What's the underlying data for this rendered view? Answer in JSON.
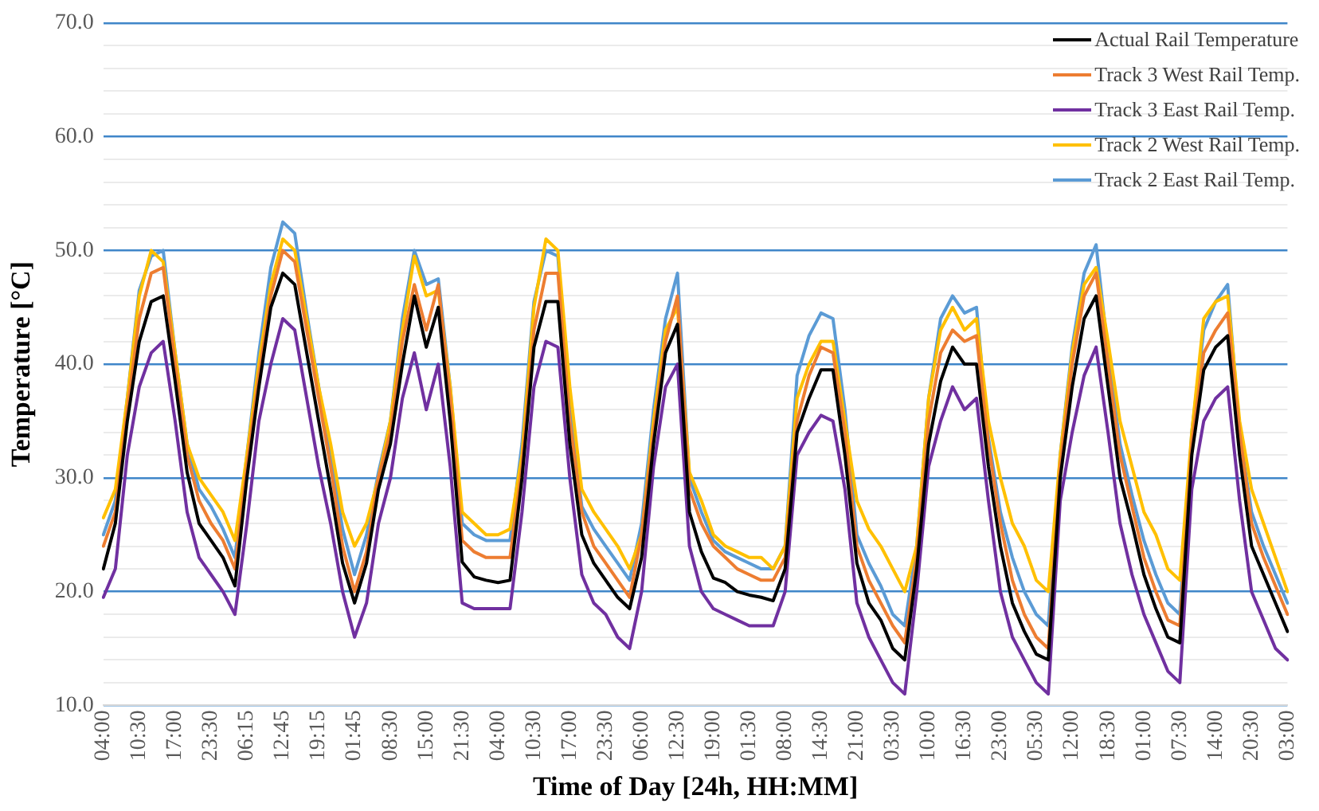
{
  "chart_data": {
    "type": "line",
    "xlabel": "Time of Day [24h, HH:MM]",
    "ylabel": "Temperature [°C]",
    "categories": [
      "04:00",
      null,
      null,
      "10:30",
      null,
      null,
      "17:00",
      null,
      null,
      "23:30",
      null,
      null,
      "06:15",
      null,
      null,
      "12:45",
      null,
      null,
      "19:15",
      null,
      null,
      "01:45",
      null,
      null,
      "08:30",
      null,
      null,
      "15:00",
      null,
      null,
      "21:30",
      null,
      null,
      "04:00",
      null,
      null,
      "10:30",
      null,
      null,
      "17:00",
      null,
      null,
      "23:30",
      null,
      null,
      "06:00",
      null,
      null,
      "12:30",
      null,
      null,
      "19:00",
      null,
      null,
      "01:30",
      null,
      null,
      "08:00",
      null,
      null,
      "14:30",
      null,
      null,
      "21:00",
      null,
      null,
      "03:30",
      null,
      null,
      "10:00",
      null,
      null,
      "16:30",
      null,
      null,
      "23:00",
      null,
      null,
      "05:30",
      null,
      null,
      "12:00",
      null,
      null,
      "18:30",
      null,
      null,
      "01:00",
      null,
      null,
      "07:30",
      null,
      null,
      "14:00",
      null,
      null,
      "20:30",
      null,
      null,
      "03:00"
    ],
    "series": [
      {
        "name": "Actual Rail Temperature",
        "color": "#000000",
        "values": [
          22,
          26,
          35,
          42,
          45.5,
          46,
          38.5,
          30.5,
          26,
          24.5,
          23,
          20.5,
          30,
          38,
          45,
          48,
          47,
          41,
          35,
          29,
          22.5,
          19,
          22.5,
          29,
          33,
          40,
          46,
          41.5,
          45,
          35,
          22.6,
          21.3,
          21,
          20.8,
          21,
          30,
          41.5,
          45.5,
          45.5,
          33,
          25,
          22.5,
          21,
          19.5,
          18.5,
          23,
          33,
          41,
          43.5,
          27,
          23.5,
          21.2,
          20.8,
          20,
          19.7,
          19.5,
          19.2,
          22,
          34,
          37,
          39.5,
          39.5,
          32,
          22.5,
          19,
          17.5,
          15,
          14,
          22,
          33,
          38.5,
          41.5,
          40,
          40,
          31,
          24,
          19,
          16.5,
          14.5,
          14,
          30,
          38,
          44,
          46,
          38,
          30,
          26,
          21.5,
          18.5,
          16,
          15.5,
          32,
          39.5,
          41.5,
          42.5,
          32,
          24,
          21.5,
          19,
          16.5
        ]
      },
      {
        "name": "Track 3 West Rail Temp.",
        "color": "#ed7d31",
        "values": [
          24,
          27,
          36,
          44,
          48,
          48.5,
          40,
          32,
          28,
          26,
          24.5,
          22,
          31,
          39,
          46,
          50,
          49,
          43,
          37,
          31,
          24,
          20,
          23.5,
          30,
          34,
          42,
          47,
          43,
          47,
          37,
          24.5,
          23.5,
          23,
          23,
          23,
          31,
          43,
          48,
          48,
          35,
          27,
          24,
          22.5,
          21,
          19.5,
          25,
          34,
          42,
          46,
          29,
          26,
          24,
          23,
          22,
          21.5,
          21,
          21,
          23,
          35,
          39,
          41.5,
          41,
          34,
          24,
          21,
          19,
          17,
          15.5,
          23,
          35,
          41,
          43,
          42,
          42.5,
          33,
          26,
          21,
          18,
          16,
          15,
          31,
          40,
          46,
          48,
          40,
          32,
          27.5,
          23,
          20,
          17.5,
          17,
          33,
          41,
          43,
          44.5,
          34,
          26,
          23,
          20.5,
          18
        ]
      },
      {
        "name": "Track 3 East Rail Temp.",
        "color": "#7030a0",
        "values": [
          19.5,
          22,
          32,
          38,
          41,
          42,
          35,
          27,
          23,
          21.5,
          20,
          18,
          26,
          35,
          40,
          44,
          43,
          37,
          31,
          26,
          20,
          16,
          19,
          26,
          30,
          37,
          41,
          36,
          40,
          31,
          19,
          18.5,
          18.5,
          18.5,
          18.5,
          27,
          38,
          42,
          41.5,
          30,
          21.5,
          19,
          18,
          16,
          15,
          20,
          31,
          38,
          40,
          24,
          20,
          18.5,
          18,
          17.5,
          17,
          17,
          17,
          20,
          32,
          34,
          35.5,
          35,
          29,
          19,
          16,
          14,
          12,
          11,
          20,
          31,
          35,
          38,
          36,
          37,
          28,
          20,
          16,
          14,
          12,
          11,
          28,
          34,
          39,
          41.5,
          34,
          26,
          21.5,
          18,
          15.5,
          13,
          12,
          29,
          35,
          37,
          38,
          28,
          20,
          17.5,
          15,
          14
        ]
      },
      {
        "name": "Track 2 West Rail Temp.",
        "color": "#ffc000",
        "values": [
          26.5,
          29,
          37,
          46,
          50,
          49,
          41,
          33,
          30,
          28.5,
          27,
          24.5,
          32,
          40,
          47,
          51,
          50,
          44,
          38,
          33,
          27,
          24,
          26,
          30,
          35,
          43,
          49.5,
          46,
          46.5,
          38,
          27,
          26,
          25,
          25,
          25.5,
          32,
          45,
          51,
          50,
          38,
          29,
          27,
          25.5,
          24,
          22,
          25,
          35,
          43,
          45,
          30.5,
          28,
          25,
          24,
          23.5,
          23,
          23,
          22,
          24,
          37,
          40,
          42,
          42,
          35,
          28,
          25.5,
          24,
          22,
          20,
          24,
          37,
          43,
          45,
          43,
          44,
          35,
          30,
          26,
          24,
          21,
          20,
          32,
          41,
          47,
          48.5,
          42,
          35,
          31,
          27,
          25,
          22,
          21,
          34,
          44,
          45.5,
          46,
          35,
          29,
          26,
          23,
          20
        ]
      },
      {
        "name": "Track 2 East Rail Temp.",
        "color": "#5b9bd5",
        "values": [
          25,
          28,
          37,
          46.5,
          49.5,
          50,
          41,
          33,
          29,
          27.5,
          25.5,
          23,
          32,
          41,
          48.5,
          52.5,
          51.5,
          44.5,
          38,
          32,
          25.5,
          21.5,
          25,
          30.5,
          35,
          44,
          50,
          47,
          47.5,
          38,
          26,
          25,
          24.5,
          24.5,
          24.5,
          33,
          45.5,
          50,
          49.5,
          36,
          27.5,
          25.5,
          24,
          22.5,
          21,
          26,
          36,
          44,
          48,
          30,
          27,
          24.5,
          23.5,
          23,
          22.5,
          22,
          22,
          24,
          39,
          42.5,
          44.5,
          44,
          36,
          25,
          22.5,
          20.5,
          18,
          17,
          24,
          37,
          44,
          46,
          44.5,
          45,
          33.5,
          27,
          23,
          20,
          18,
          17,
          32,
          41.5,
          48,
          50.5,
          41,
          33,
          28.5,
          24.5,
          21.5,
          19,
          18,
          34,
          43,
          45.5,
          47,
          34,
          27,
          24,
          21.5,
          19
        ]
      }
    ],
    "ylim": [
      10,
      70
    ],
    "yticks": [
      {
        "value": 10,
        "label": "10.0"
      },
      {
        "value": 12,
        "label": null
      },
      {
        "value": 14,
        "label": null
      },
      {
        "value": 16,
        "label": null
      },
      {
        "value": 18,
        "label": null
      },
      {
        "value": 20,
        "label": "20.0"
      },
      {
        "value": 22,
        "label": null
      },
      {
        "value": 24,
        "label": null
      },
      {
        "value": 26,
        "label": null
      },
      {
        "value": 28,
        "label": null
      },
      {
        "value": 30,
        "label": "30.0"
      },
      {
        "value": 32,
        "label": null
      },
      {
        "value": 34,
        "label": null
      },
      {
        "value": 36,
        "label": null
      },
      {
        "value": 38,
        "label": null
      },
      {
        "value": 40,
        "label": "40.0"
      },
      {
        "value": 42,
        "label": null
      },
      {
        "value": 44,
        "label": null
      },
      {
        "value": 46,
        "label": null
      },
      {
        "value": 48,
        "label": null
      },
      {
        "value": 50,
        "label": "50.0"
      },
      {
        "value": 52,
        "label": null
      },
      {
        "value": 54,
        "label": null
      },
      {
        "value": 56,
        "label": null
      },
      {
        "value": 58,
        "label": null
      },
      {
        "value": 60,
        "label": "60.0"
      },
      {
        "value": 62,
        "label": null
      },
      {
        "value": 64,
        "label": null
      },
      {
        "value": 66,
        "label": null
      },
      {
        "value": 68,
        "label": null
      },
      {
        "value": 70,
        "label": "70.0"
      }
    ],
    "grid": "y",
    "legend": "top right",
    "marker": "none",
    "line_style": "solid"
  }
}
